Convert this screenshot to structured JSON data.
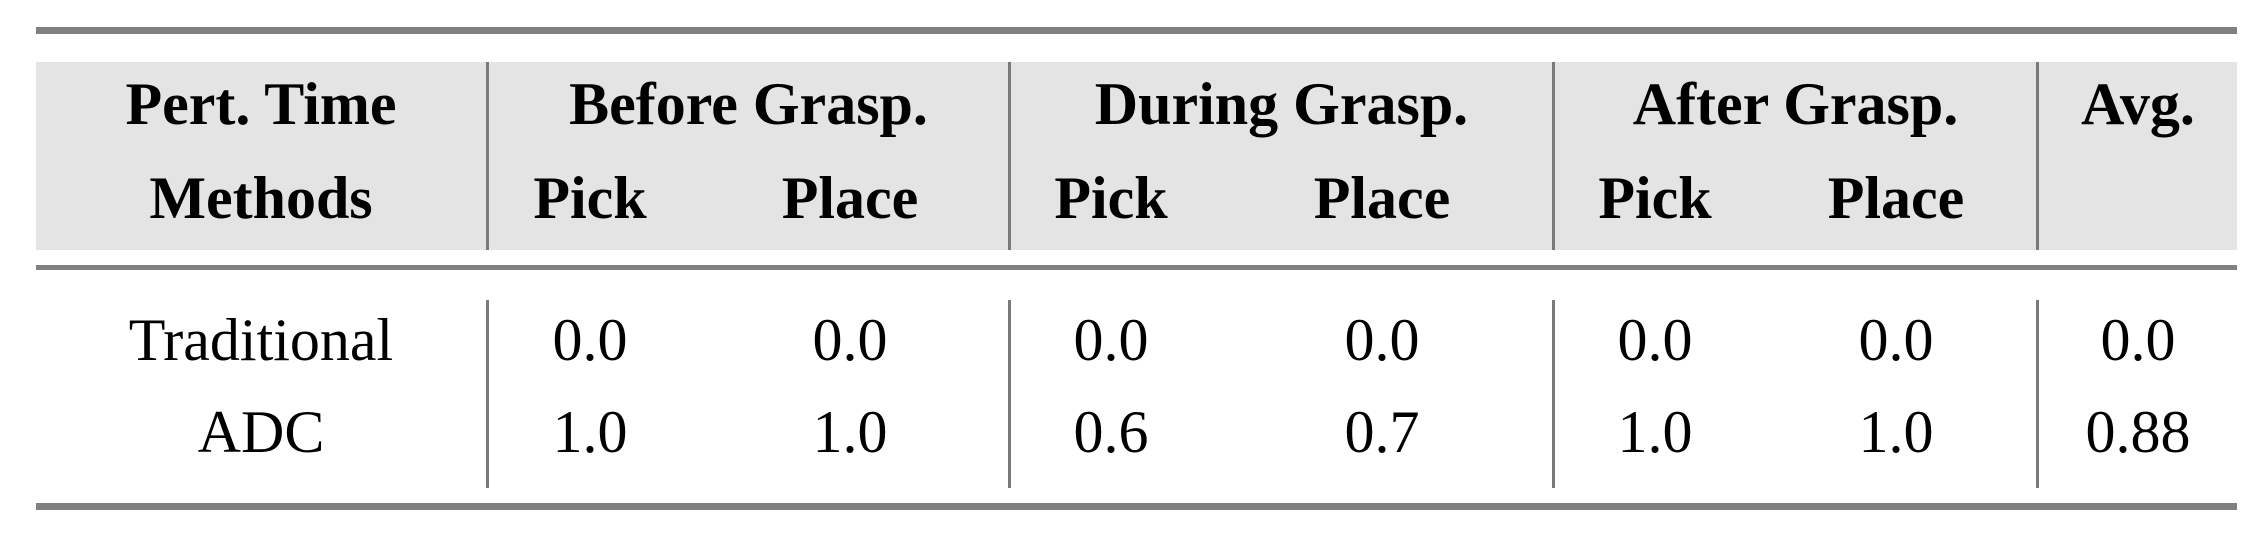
{
  "table": {
    "header_row1": [
      "Pert. Time",
      "Before Grasp.",
      "During Grasp.",
      "After Grasp.",
      "Avg."
    ],
    "header_row2": [
      "Methods",
      "Pick",
      "Place",
      "Pick",
      "Place",
      "Pick",
      "Place",
      ""
    ],
    "rows": [
      [
        "Traditional",
        "0.0",
        "0.0",
        "0.0",
        "0.0",
        "0.0",
        "0.0",
        "0.0"
      ],
      [
        "ADC",
        "1.0",
        "1.0",
        "0.6",
        "0.7",
        "1.0",
        "1.0",
        "0.88"
      ]
    ],
    "colors": {
      "header_bg": "#e4e4e4",
      "rule": "#808080"
    }
  }
}
